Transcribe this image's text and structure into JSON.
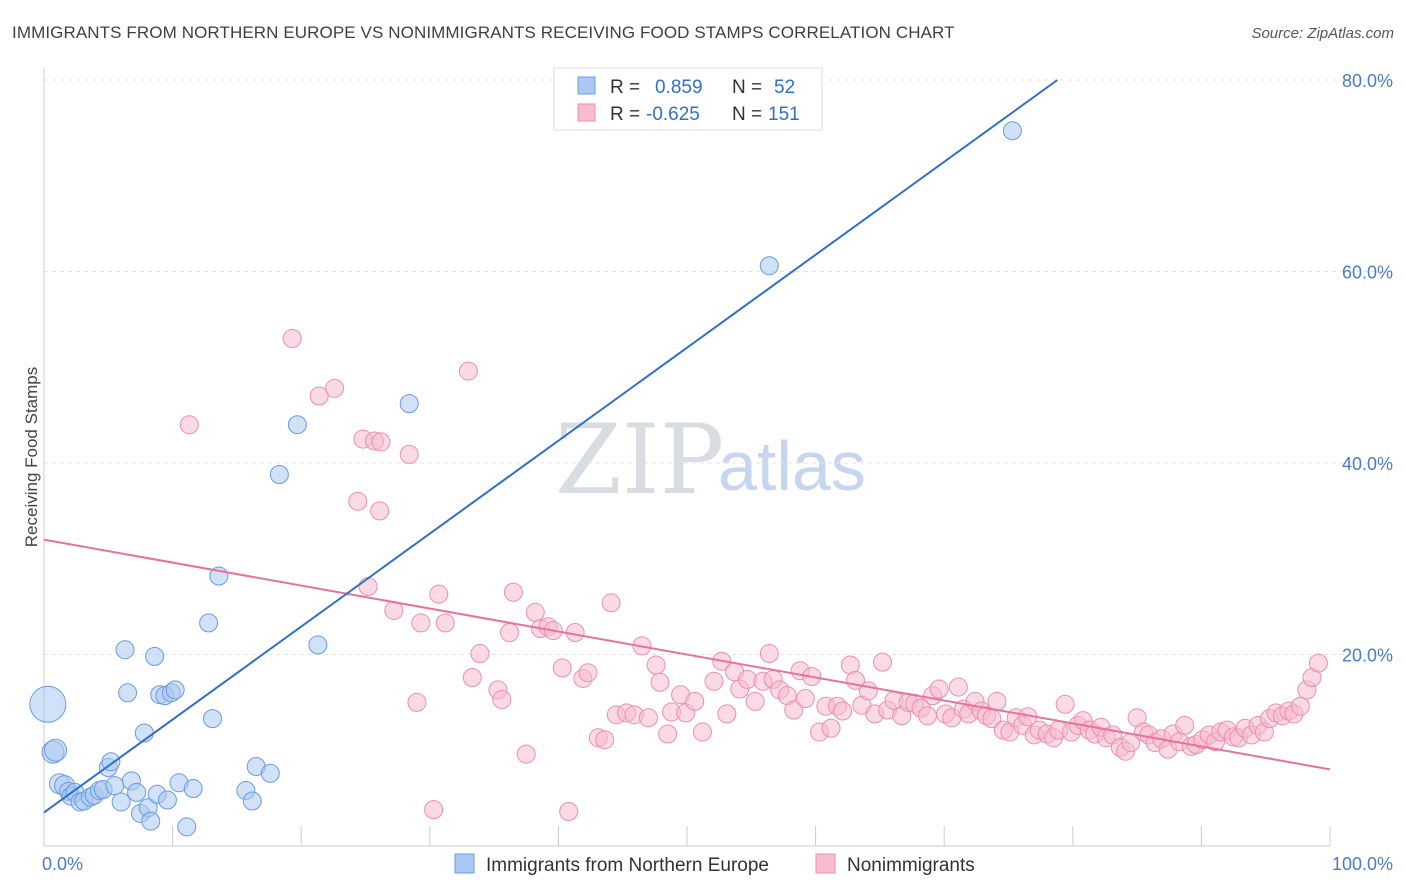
{
  "title": "IMMIGRANTS FROM NORTHERN EUROPE VS NONIMMIGRANTS RECEIVING FOOD STAMPS CORRELATION CHART",
  "source": "Source: ZipAtlas.com",
  "watermark": {
    "zip": "ZIP",
    "atlas": "atlas"
  },
  "legend_top": [
    {
      "r_label": "R =",
      "r_value": "0.859",
      "n_label": "N =",
      "n_value": "52",
      "color": "#a9c8f2",
      "stroke": "#6b9be0"
    },
    {
      "r_label": "R =",
      "r_value": "-0.625",
      "n_label": "N =",
      "n_value": "151",
      "color": "#f7bcd0",
      "stroke": "#ec8fae"
    }
  ],
  "chart_data": {
    "type": "scatter",
    "title": "IMMIGRANTS FROM NORTHERN EUROPE VS NONIMMIGRANTS RECEIVING FOOD STAMPS CORRELATION CHART",
    "xlabel": "",
    "ylabel": "Receiving Food Stamps",
    "xlim": [
      0,
      100
    ],
    "ylim": [
      0,
      80
    ],
    "x_tick_labels": [
      "0.0%",
      "100.0%"
    ],
    "y_ticks": [
      20,
      40,
      60,
      80
    ],
    "y_tick_labels": [
      "20.0%",
      "40.0%",
      "60.0%",
      "80.0%"
    ],
    "grid": true,
    "legend_position": "bottom",
    "series": [
      {
        "name": "Immigrants from Northern Europe",
        "color": "#6b9be0",
        "fill": "#a9c8f2",
        "trend": {
          "x": [
            0,
            78.8
          ],
          "y": [
            3.5,
            80
          ]
        },
        "points": [
          [
            0.3,
            14.8
          ],
          [
            0.7,
            9.8
          ],
          [
            0.9,
            10
          ],
          [
            1.2,
            6.5
          ],
          [
            1.6,
            6.3
          ],
          [
            1.9,
            5.7
          ],
          [
            2.1,
            5.2
          ],
          [
            2.4,
            5.6
          ],
          [
            2.8,
            4.6
          ],
          [
            3.1,
            4.7
          ],
          [
            3.6,
            5.1
          ],
          [
            3.9,
            5.3
          ],
          [
            4.3,
            5.8
          ],
          [
            4.6,
            5.9
          ],
          [
            5,
            8.2
          ],
          [
            5.2,
            8.8
          ],
          [
            5.5,
            6.3
          ],
          [
            6,
            4.6
          ],
          [
            6.3,
            20.5
          ],
          [
            6.5,
            16
          ],
          [
            6.8,
            6.8
          ],
          [
            7.2,
            5.6
          ],
          [
            7.5,
            3.4
          ],
          [
            7.8,
            11.8
          ],
          [
            8.1,
            4
          ],
          [
            8.3,
            2.6
          ],
          [
            8.6,
            19.8
          ],
          [
            8.8,
            5.4
          ],
          [
            9,
            15.8
          ],
          [
            9.4,
            15.7
          ],
          [
            9.6,
            4.8
          ],
          [
            9.9,
            16
          ],
          [
            10.2,
            16.3
          ],
          [
            10.5,
            6.6
          ],
          [
            11.1,
            2
          ],
          [
            11.6,
            6
          ],
          [
            12.8,
            23.3
          ],
          [
            13.1,
            13.3
          ],
          [
            13.6,
            28.2
          ],
          [
            15.7,
            5.8
          ],
          [
            16.2,
            4.7
          ],
          [
            16.5,
            8.3
          ],
          [
            17.6,
            7.6
          ],
          [
            18.3,
            38.8
          ],
          [
            19.7,
            44
          ],
          [
            21.3,
            21
          ],
          [
            28.4,
            46.2
          ],
          [
            56.4,
            60.6
          ],
          [
            75.3,
            74.7
          ]
        ],
        "radii": [
          18,
          11,
          11,
          10,
          10,
          9,
          9,
          9,
          9,
          9,
          9,
          9,
          9,
          9,
          9,
          9,
          9,
          9,
          9,
          9,
          9,
          9,
          9,
          9,
          9,
          9,
          9,
          9,
          9,
          9,
          9,
          9,
          9,
          9,
          9,
          9,
          9,
          9,
          9,
          9,
          9,
          9,
          9,
          9,
          9,
          9,
          9,
          9,
          9
        ]
      },
      {
        "name": "Nonimmigrants",
        "color": "#e8729b",
        "fill": "#f7bcd0",
        "trend": {
          "x": [
            0,
            100
          ],
          "y": [
            32,
            8
          ]
        },
        "points": [
          [
            11.3,
            44
          ],
          [
            19.3,
            53
          ],
          [
            21.4,
            47
          ],
          [
            22.6,
            47.8
          ],
          [
            24.4,
            36
          ],
          [
            24.8,
            42.5
          ],
          [
            25.7,
            42.3
          ],
          [
            26.2,
            42.2
          ],
          [
            25.2,
            27.1
          ],
          [
            26.1,
            35
          ],
          [
            27.2,
            24.6
          ],
          [
            28.4,
            40.9
          ],
          [
            29,
            15
          ],
          [
            29.3,
            23.3
          ],
          [
            30.3,
            3.8
          ],
          [
            30.7,
            26.3
          ],
          [
            31.2,
            23.3
          ],
          [
            33,
            49.6
          ],
          [
            33.3,
            17.6
          ],
          [
            33.9,
            20.1
          ],
          [
            35.3,
            16.3
          ],
          [
            35.6,
            15.3
          ],
          [
            36.2,
            22.3
          ],
          [
            36.5,
            26.5
          ],
          [
            37.5,
            9.6
          ],
          [
            38.2,
            24.4
          ],
          [
            38.6,
            22.7
          ],
          [
            39.2,
            22.9
          ],
          [
            39.6,
            22.5
          ],
          [
            40.3,
            18.6
          ],
          [
            40.8,
            3.6
          ],
          [
            41.3,
            22.3
          ],
          [
            41.9,
            17.5
          ],
          [
            42.3,
            18.1
          ],
          [
            43.1,
            11.3
          ],
          [
            43.6,
            11.1
          ],
          [
            44.1,
            25.4
          ],
          [
            44.5,
            13.7
          ],
          [
            45.3,
            13.9
          ],
          [
            45.9,
            13.7
          ],
          [
            46.5,
            20.9
          ],
          [
            47,
            13.4
          ],
          [
            47.6,
            18.9
          ],
          [
            47.9,
            17.1
          ],
          [
            48.5,
            11.7
          ],
          [
            48.8,
            14
          ],
          [
            49.5,
            15.8
          ],
          [
            49.9,
            13.9
          ],
          [
            50.6,
            15.1
          ],
          [
            51.2,
            11.9
          ],
          [
            52.1,
            17.2
          ],
          [
            52.7,
            19.3
          ],
          [
            53.1,
            13.8
          ],
          [
            53.7,
            18.2
          ],
          [
            54.1,
            16.4
          ],
          [
            54.7,
            17.4
          ],
          [
            55.3,
            15.1
          ],
          [
            55.9,
            17.2
          ],
          [
            56.4,
            20.1
          ],
          [
            56.7,
            17.4
          ],
          [
            57.2,
            16.3
          ],
          [
            57.8,
            15.7
          ],
          [
            58.3,
            14.2
          ],
          [
            58.8,
            18.3
          ],
          [
            59.2,
            15.4
          ],
          [
            59.7,
            17.7
          ],
          [
            60.3,
            11.9
          ],
          [
            60.8,
            14.6
          ],
          [
            61.2,
            12.3
          ],
          [
            61.7,
            14.6
          ],
          [
            62.1,
            14.1
          ],
          [
            62.7,
            18.9
          ],
          [
            63.1,
            17.3
          ],
          [
            63.6,
            14.7
          ],
          [
            64.1,
            16.2
          ],
          [
            64.6,
            13.8
          ],
          [
            65.2,
            19.2
          ],
          [
            65.6,
            14.2
          ],
          [
            66.1,
            15.2
          ],
          [
            66.7,
            13.6
          ],
          [
            67.2,
            15
          ],
          [
            67.7,
            14.9
          ],
          [
            68.2,
            14.4
          ],
          [
            68.7,
            13.6
          ],
          [
            69.1,
            15.7
          ],
          [
            69.6,
            16.4
          ],
          [
            70.1,
            13.8
          ],
          [
            70.6,
            13.4
          ],
          [
            71.1,
            16.6
          ],
          [
            71.5,
            14.3
          ],
          [
            71.9,
            13.8
          ],
          [
            72.4,
            15.1
          ],
          [
            72.9,
            14.1
          ],
          [
            73.3,
            13.6
          ],
          [
            73.7,
            13.3
          ],
          [
            74.1,
            15.1
          ],
          [
            74.6,
            12.1
          ],
          [
            75.1,
            11.9
          ],
          [
            75.6,
            13.4
          ],
          [
            76.1,
            12.6
          ],
          [
            76.5,
            13.5
          ],
          [
            77,
            11.6
          ],
          [
            77.4,
            12.1
          ],
          [
            78,
            11.7
          ],
          [
            78.5,
            11.3
          ],
          [
            78.9,
            12.1
          ],
          [
            79.4,
            14.8
          ],
          [
            79.9,
            11.9
          ],
          [
            80.4,
            12.6
          ],
          [
            80.8,
            13.1
          ],
          [
            81.3,
            12.1
          ],
          [
            81.7,
            11.7
          ],
          [
            82.2,
            12.4
          ],
          [
            82.6,
            11.3
          ],
          [
            83.1,
            11.6
          ],
          [
            83.7,
            10.3
          ],
          [
            84.1,
            9.9
          ],
          [
            84.5,
            10.8
          ],
          [
            85,
            13.4
          ],
          [
            85.5,
            11.9
          ],
          [
            85.9,
            11.6
          ],
          [
            86.4,
            10.8
          ],
          [
            86.9,
            11.2
          ],
          [
            87.4,
            10.1
          ],
          [
            87.8,
            11.7
          ],
          [
            88.3,
            10.9
          ],
          [
            88.7,
            12.6
          ],
          [
            89.2,
            10.4
          ],
          [
            89.6,
            10.6
          ],
          [
            90.1,
            11.1
          ],
          [
            90.6,
            11.6
          ],
          [
            91.1,
            10.9
          ],
          [
            91.5,
            11.9
          ],
          [
            92,
            12.1
          ],
          [
            92.5,
            11.4
          ],
          [
            92.9,
            11.3
          ],
          [
            93.4,
            12.3
          ],
          [
            93.9,
            11.6
          ],
          [
            94.4,
            12.6
          ],
          [
            94.9,
            11.9
          ],
          [
            95.3,
            13.3
          ],
          [
            95.8,
            13.9
          ],
          [
            96.3,
            13.6
          ],
          [
            96.8,
            14.1
          ],
          [
            97.2,
            13.8
          ],
          [
            97.7,
            14.6
          ],
          [
            98.2,
            16.3
          ],
          [
            98.6,
            17.6
          ],
          [
            99.1,
            19.1
          ]
        ]
      }
    ]
  }
}
